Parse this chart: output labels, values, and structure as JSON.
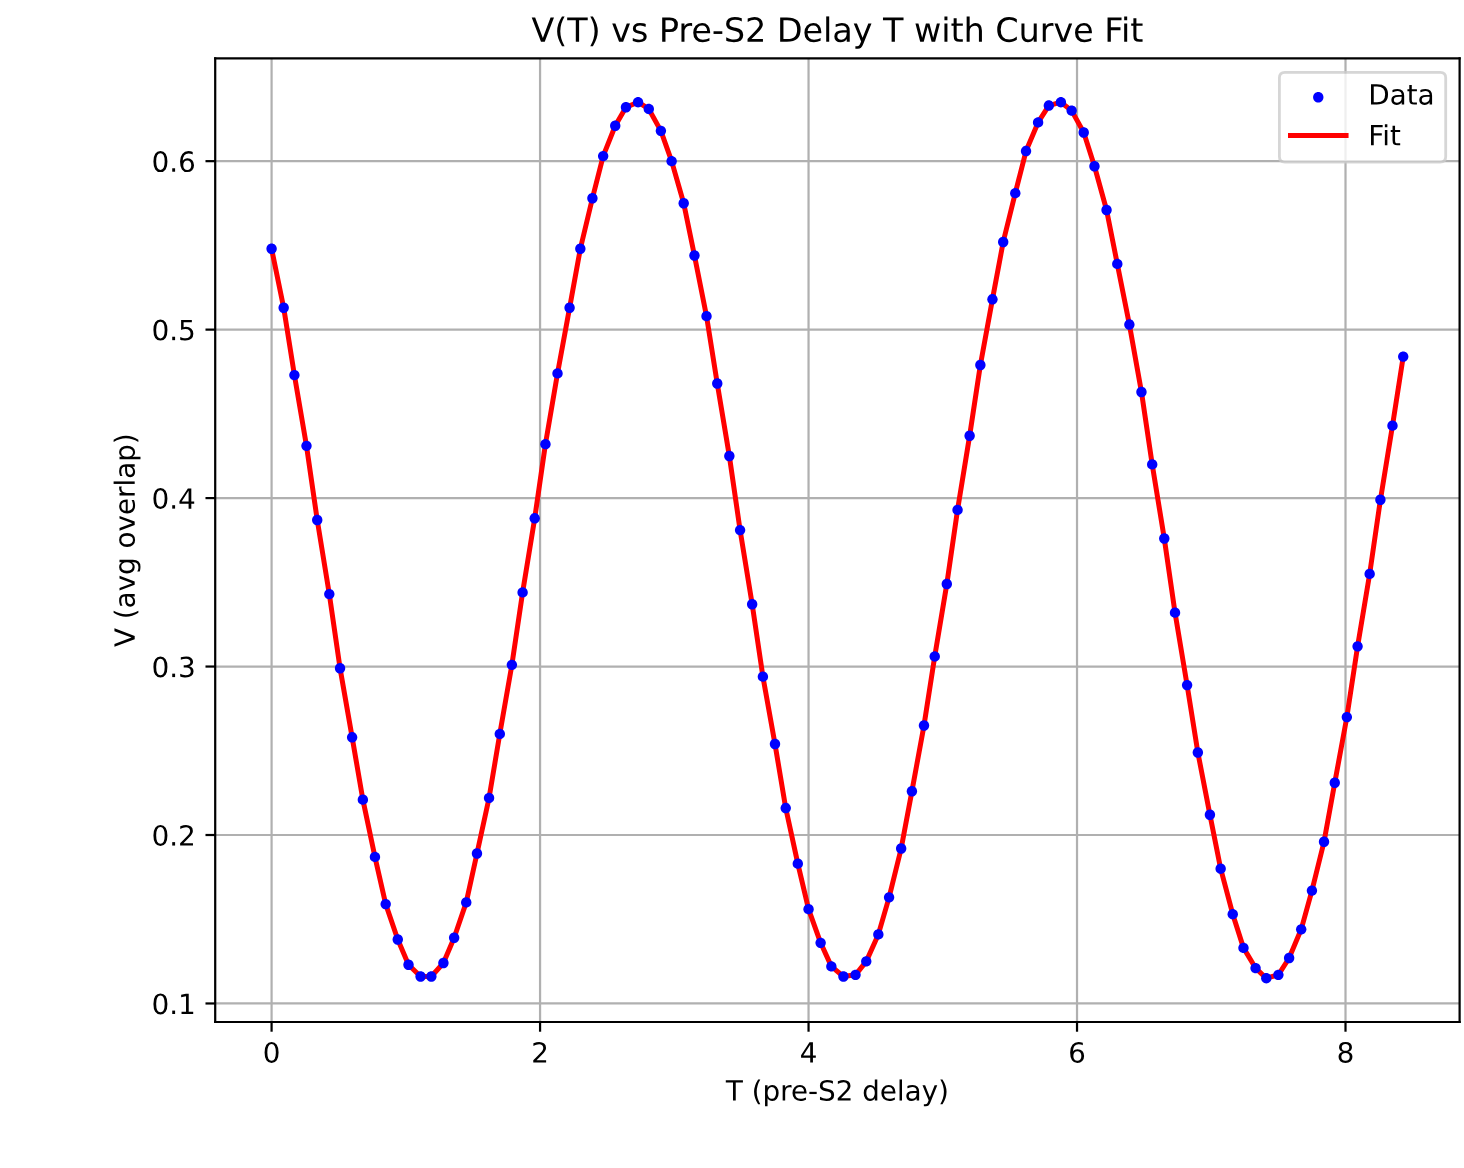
{
  "chart_data": {
    "type": "scatter",
    "title": "V(T) vs Pre-S2 Delay T with Curve Fit",
    "xlabel": "T (pre-S2 delay)",
    "ylabel": "V (avg overlap)",
    "xlim": [
      -0.42,
      8.85
    ],
    "ylim": [
      0.089,
      0.661
    ],
    "xticks": [
      0,
      2,
      4,
      6,
      8
    ],
    "yticks": [
      0.1,
      0.2,
      0.3,
      0.4,
      0.5,
      0.6
    ],
    "grid": true,
    "legend": "top right",
    "series": [
      {
        "name": "Data",
        "marker": "circle",
        "color": "#0000ff",
        "x": [
          0,
          0.09,
          0.17,
          0.26,
          0.34,
          0.43,
          0.51,
          0.6,
          0.68,
          0.77,
          0.85,
          0.94,
          1.02,
          1.11,
          1.19,
          1.28,
          1.36,
          1.45,
          1.53,
          1.62,
          1.7,
          1.79,
          1.87,
          1.96,
          2.04,
          2.13,
          2.22,
          2.3,
          2.39,
          2.47,
          2.56,
          2.64,
          2.73,
          2.81,
          2.9,
          2.98,
          3.07,
          3.15,
          3.24,
          3.32,
          3.41,
          3.49,
          3.58,
          3.66,
          3.75,
          3.83,
          3.92,
          4.0,
          4.09,
          4.17,
          4.26,
          4.35,
          4.43,
          4.52,
          4.6,
          4.69,
          4.77,
          4.86,
          4.94,
          5.03,
          5.11,
          5.2,
          5.28,
          5.37,
          5.45,
          5.54,
          5.62,
          5.71,
          5.79,
          5.88,
          5.96,
          6.05,
          6.13,
          6.22,
          6.3,
          6.39,
          6.48,
          6.56,
          6.65,
          6.73,
          6.82,
          6.9,
          6.99,
          7.07,
          7.16,
          7.24,
          7.33,
          7.41,
          7.5,
          7.58,
          7.67,
          7.75,
          7.84,
          7.92,
          8.01,
          8.09,
          8.18,
          8.26,
          8.35,
          8.43
        ],
        "values": [
          0.548,
          0.513,
          0.473,
          0.431,
          0.387,
          0.343,
          0.299,
          0.258,
          0.221,
          0.187,
          0.159,
          0.138,
          0.123,
          0.116,
          0.116,
          0.124,
          0.139,
          0.16,
          0.189,
          0.222,
          0.26,
          0.301,
          0.344,
          0.388,
          0.432,
          0.474,
          0.513,
          0.548,
          0.578,
          0.603,
          0.621,
          0.632,
          0.635,
          0.631,
          0.618,
          0.6,
          0.575,
          0.544,
          0.508,
          0.468,
          0.425,
          0.381,
          0.337,
          0.294,
          0.254,
          0.216,
          0.183,
          0.156,
          0.136,
          0.122,
          0.116,
          0.117,
          0.125,
          0.141,
          0.163,
          0.192,
          0.226,
          0.265,
          0.306,
          0.349,
          0.393,
          0.437,
          0.479,
          0.518,
          0.552,
          0.581,
          0.606,
          0.623,
          0.633,
          0.635,
          0.63,
          0.617,
          0.597,
          0.571,
          0.539,
          0.503,
          0.463,
          0.42,
          0.376,
          0.332,
          0.289,
          0.249,
          0.212,
          0.18,
          0.153,
          0.133,
          0.121,
          0.115,
          0.117,
          0.127,
          0.144,
          0.167,
          0.196,
          0.231,
          0.27,
          0.312,
          0.355,
          0.399,
          0.443,
          0.484
        ]
      },
      {
        "name": "Fit",
        "type": "line",
        "line_style": "solid",
        "color": "#ff0000",
        "x": [
          0,
          0.09,
          0.17,
          0.26,
          0.34,
          0.43,
          0.51,
          0.6,
          0.68,
          0.77,
          0.85,
          0.94,
          1.02,
          1.11,
          1.19,
          1.28,
          1.36,
          1.45,
          1.53,
          1.62,
          1.7,
          1.79,
          1.87,
          1.96,
          2.04,
          2.13,
          2.22,
          2.3,
          2.39,
          2.47,
          2.56,
          2.64,
          2.73,
          2.81,
          2.9,
          2.98,
          3.07,
          3.15,
          3.24,
          3.32,
          3.41,
          3.49,
          3.58,
          3.66,
          3.75,
          3.83,
          3.92,
          4.0,
          4.09,
          4.17,
          4.26,
          4.35,
          4.43,
          4.52,
          4.6,
          4.69,
          4.77,
          4.86,
          4.94,
          5.03,
          5.11,
          5.2,
          5.28,
          5.37,
          5.45,
          5.54,
          5.62,
          5.71,
          5.79,
          5.88,
          5.96,
          6.05,
          6.13,
          6.22,
          6.3,
          6.39,
          6.48,
          6.56,
          6.65,
          6.73,
          6.82,
          6.9,
          6.99,
          7.07,
          7.16,
          7.24,
          7.33,
          7.41,
          7.5,
          7.58,
          7.67,
          7.75,
          7.84,
          7.92,
          8.01,
          8.09,
          8.18,
          8.26,
          8.35,
          8.43
        ],
        "values": [
          0.548,
          0.513,
          0.473,
          0.431,
          0.387,
          0.343,
          0.299,
          0.258,
          0.221,
          0.187,
          0.159,
          0.138,
          0.123,
          0.116,
          0.116,
          0.124,
          0.139,
          0.16,
          0.189,
          0.222,
          0.26,
          0.301,
          0.344,
          0.388,
          0.432,
          0.474,
          0.513,
          0.548,
          0.578,
          0.603,
          0.621,
          0.632,
          0.635,
          0.631,
          0.618,
          0.6,
          0.575,
          0.544,
          0.508,
          0.468,
          0.425,
          0.381,
          0.337,
          0.294,
          0.254,
          0.216,
          0.183,
          0.156,
          0.136,
          0.122,
          0.116,
          0.117,
          0.125,
          0.141,
          0.163,
          0.192,
          0.226,
          0.265,
          0.306,
          0.349,
          0.393,
          0.437,
          0.479,
          0.518,
          0.552,
          0.581,
          0.606,
          0.623,
          0.633,
          0.635,
          0.63,
          0.617,
          0.597,
          0.571,
          0.539,
          0.503,
          0.463,
          0.42,
          0.376,
          0.332,
          0.289,
          0.249,
          0.212,
          0.18,
          0.153,
          0.133,
          0.121,
          0.115,
          0.117,
          0.127,
          0.144,
          0.167,
          0.196,
          0.231,
          0.27,
          0.312,
          0.355,
          0.399,
          0.443,
          0.484
        ]
      }
    ]
  }
}
